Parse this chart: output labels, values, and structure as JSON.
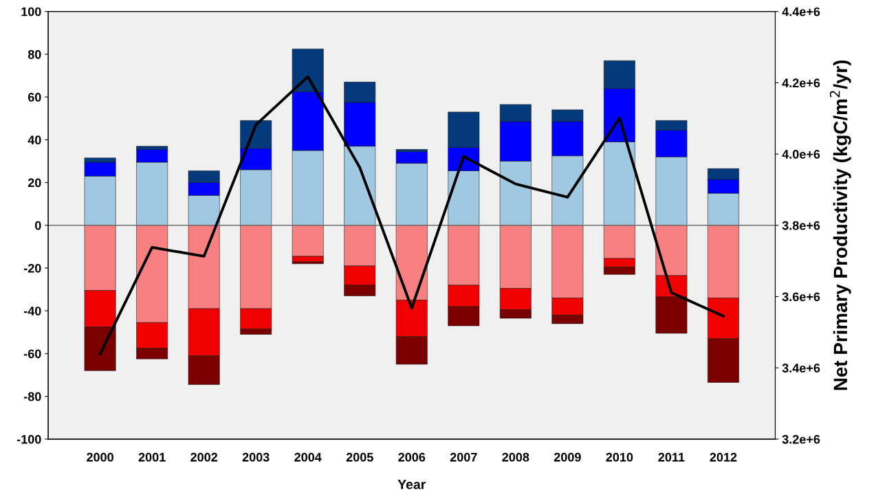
{
  "chart_data": {
    "type": "bar",
    "stacked": true,
    "xlabel": "Year",
    "y2label": "Net Primary Productivity (kgC/m$^{2}$/yr)",
    "categories": [
      "2000",
      "2001",
      "2002",
      "2003",
      "2004",
      "2005",
      "2006",
      "2007",
      "2008",
      "2009",
      "2010",
      "2011",
      "2012"
    ],
    "series": [
      {
        "color": "#a0c8e0",
        "values": [
          23,
          29.5,
          14,
          26,
          35,
          37,
          29,
          25.5,
          30,
          32.5,
          39,
          32,
          15
        ]
      },
      {
        "color": "#0000ff",
        "values": [
          6.5,
          6,
          6,
          10,
          27.5,
          20.5,
          5.5,
          11,
          18.5,
          16,
          25,
          12.5,
          6.5
        ]
      },
      {
        "color": "#033a7c",
        "values": [
          2,
          1.5,
          5.5,
          13,
          20,
          9.5,
          1,
          16.5,
          8,
          5.5,
          13,
          4.5,
          5
        ]
      },
      {
        "color": "#f98080",
        "values": [
          -30.5,
          -45.5,
          -39,
          -39,
          -14.5,
          -19,
          -35,
          -28,
          -29.5,
          -34,
          -15.5,
          -23.5,
          -34
        ]
      },
      {
        "color": "#f00000",
        "values": [
          -17,
          -12,
          -22,
          -9.5,
          -2.5,
          -9,
          -17,
          -10,
          -10,
          -8,
          -4,
          -10,
          -19
        ]
      },
      {
        "color": "#7a0000",
        "values": [
          -20.5,
          -5,
          -13.5,
          -2.5,
          -1,
          -5,
          -13,
          -9,
          -4,
          -4,
          -3.5,
          -17,
          -20.5
        ]
      },
      {
        "type": "line",
        "axis": "y2",
        "color": "#000000",
        "values": [
          3439000,
          3738000,
          3713000,
          4082000,
          4217000,
          3962000,
          3568000,
          3993000,
          3916000,
          3879000,
          4101000,
          3611000,
          3545000
        ]
      }
    ],
    "ylim": [
      -100,
      100
    ],
    "yticks": [
      -100,
      -80,
      -60,
      -40,
      -20,
      0,
      20,
      40,
      60,
      80,
      100
    ],
    "y2lim": [
      3200000,
      4400000
    ],
    "y2ticks": [
      {
        "value": 3200000,
        "label": "3.2e+6"
      },
      {
        "value": 3400000,
        "label": "3.4e+6"
      },
      {
        "value": 3600000,
        "label": "3.6e+6"
      },
      {
        "value": 3800000,
        "label": "3.8e+6"
      },
      {
        "value": 4000000,
        "label": "4.0e+6"
      },
      {
        "value": 4200000,
        "label": "4.2e+6"
      },
      {
        "value": 4400000,
        "label": "4.4e+6"
      }
    ],
    "ref_lines": [
      {
        "axis": "y",
        "value": 0,
        "color": "#707070"
      }
    ],
    "grid": false,
    "legend": false
  }
}
